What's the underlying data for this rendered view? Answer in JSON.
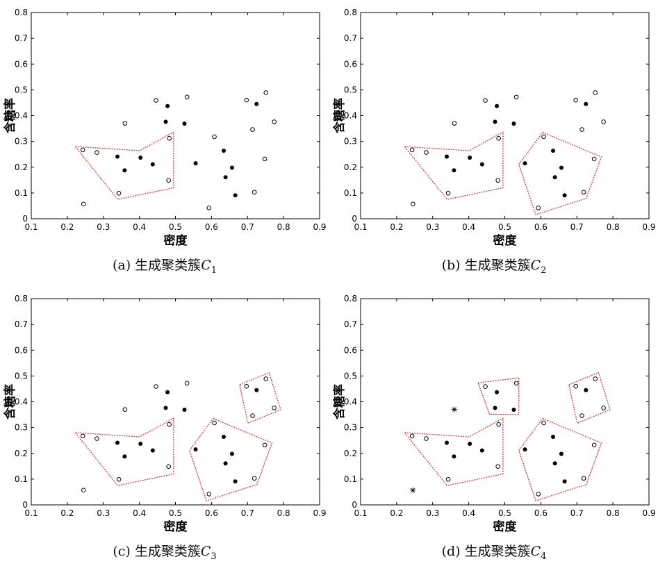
{
  "chart_data": {
    "type": "scatter",
    "xlabel": "密度",
    "ylabel": "含糖率",
    "xlim": [
      0.1,
      0.9
    ],
    "ylim": [
      0,
      0.8
    ],
    "xticks": [
      "0.1",
      "0.2",
      "0.3",
      "0.4",
      "0.5",
      "0.6",
      "0.7",
      "0.8",
      "0.9"
    ],
    "yticks": [
      "0",
      "0.1",
      "0.2",
      "0.3",
      "0.4",
      "0.5",
      "0.6",
      "0.7",
      "0.8"
    ],
    "grid": false,
    "colors": {
      "polygon": "#d03a3a",
      "point": "#000000"
    },
    "points": [
      {
        "x": 0.697,
        "y": 0.46,
        "filled": false
      },
      {
        "x": 0.774,
        "y": 0.376,
        "filled": false
      },
      {
        "x": 0.634,
        "y": 0.264,
        "filled": true
      },
      {
        "x": 0.608,
        "y": 0.318,
        "filled": false
      },
      {
        "x": 0.556,
        "y": 0.215,
        "filled": true
      },
      {
        "x": 0.403,
        "y": 0.237,
        "filled": true
      },
      {
        "x": 0.481,
        "y": 0.149,
        "filled": false
      },
      {
        "x": 0.437,
        "y": 0.211,
        "filled": true
      },
      {
        "x": 0.666,
        "y": 0.091,
        "filled": true
      },
      {
        "x": 0.243,
        "y": 0.267,
        "filled": false
      },
      {
        "x": 0.245,
        "y": 0.057,
        "filled": false
      },
      {
        "x": 0.343,
        "y": 0.099,
        "filled": false
      },
      {
        "x": 0.639,
        "y": 0.161,
        "filled": true
      },
      {
        "x": 0.657,
        "y": 0.198,
        "filled": true
      },
      {
        "x": 0.36,
        "y": 0.37,
        "filled": false
      },
      {
        "x": 0.593,
        "y": 0.042,
        "filled": false
      },
      {
        "x": 0.719,
        "y": 0.103,
        "filled": false
      },
      {
        "x": 0.359,
        "y": 0.188,
        "filled": true
      },
      {
        "x": 0.339,
        "y": 0.241,
        "filled": true
      },
      {
        "x": 0.282,
        "y": 0.257,
        "filled": false
      },
      {
        "x": 0.748,
        "y": 0.232,
        "filled": false
      },
      {
        "x": 0.714,
        "y": 0.346,
        "filled": false
      },
      {
        "x": 0.483,
        "y": 0.312,
        "filled": false
      },
      {
        "x": 0.478,
        "y": 0.437,
        "filled": true
      },
      {
        "x": 0.525,
        "y": 0.369,
        "filled": true
      },
      {
        "x": 0.751,
        "y": 0.489,
        "filled": false
      },
      {
        "x": 0.532,
        "y": 0.472,
        "filled": false
      },
      {
        "x": 0.473,
        "y": 0.376,
        "filled": true
      },
      {
        "x": 0.725,
        "y": 0.445,
        "filled": true
      },
      {
        "x": 0.446,
        "y": 0.459,
        "filled": false
      }
    ],
    "panels": [
      {
        "caption_prefix": "(a) 生成聚类簇",
        "cluster_symbol": "C",
        "cluster_index": "1",
        "clusters": [
          [
            [
              0.222,
              0.28
            ],
            [
              0.401,
              0.264
            ],
            [
              0.495,
              0.336
            ],
            [
              0.495,
              0.12
            ],
            [
              0.34,
              0.075
            ]
          ]
        ],
        "outliers": []
      },
      {
        "caption_prefix": "(b) 生成聚类簇",
        "cluster_symbol": "C",
        "cluster_index": "2",
        "clusters": [
          [
            [
              0.222,
              0.28
            ],
            [
              0.401,
              0.264
            ],
            [
              0.495,
              0.336
            ],
            [
              0.495,
              0.12
            ],
            [
              0.34,
              0.075
            ]
          ],
          [
            [
              0.605,
              0.335
            ],
            [
              0.768,
              0.24
            ],
            [
              0.726,
              0.079
            ],
            [
              0.586,
              0.016
            ],
            [
              0.539,
              0.211
            ]
          ]
        ],
        "outliers": []
      },
      {
        "caption_prefix": "(c) 生成聚类簇",
        "cluster_symbol": "C",
        "cluster_index": "3",
        "clusters": [
          [
            [
              0.222,
              0.28
            ],
            [
              0.401,
              0.264
            ],
            [
              0.495,
              0.336
            ],
            [
              0.495,
              0.12
            ],
            [
              0.34,
              0.075
            ]
          ],
          [
            [
              0.605,
              0.335
            ],
            [
              0.768,
              0.24
            ],
            [
              0.726,
              0.079
            ],
            [
              0.586,
              0.016
            ],
            [
              0.539,
              0.211
            ]
          ],
          [
            [
              0.678,
              0.466
            ],
            [
              0.76,
              0.513
            ],
            [
              0.792,
              0.369
            ],
            [
              0.701,
              0.317
            ]
          ]
        ],
        "outliers": []
      },
      {
        "caption_prefix": "(d) 生成聚类簇",
        "cluster_symbol": "C",
        "cluster_index": "4",
        "clusters": [
          [
            [
              0.222,
              0.28
            ],
            [
              0.401,
              0.264
            ],
            [
              0.495,
              0.336
            ],
            [
              0.495,
              0.12
            ],
            [
              0.34,
              0.075
            ]
          ],
          [
            [
              0.605,
              0.335
            ],
            [
              0.768,
              0.24
            ],
            [
              0.726,
              0.079
            ],
            [
              0.586,
              0.016
            ],
            [
              0.539,
              0.211
            ]
          ],
          [
            [
              0.678,
              0.466
            ],
            [
              0.76,
              0.513
            ],
            [
              0.792,
              0.369
            ],
            [
              0.701,
              0.317
            ]
          ],
          [
            [
              0.426,
              0.473
            ],
            [
              0.539,
              0.493
            ],
            [
              0.539,
              0.351
            ],
            [
              0.458,
              0.351
            ]
          ]
        ],
        "outliers": [
          10,
          14
        ]
      }
    ]
  }
}
